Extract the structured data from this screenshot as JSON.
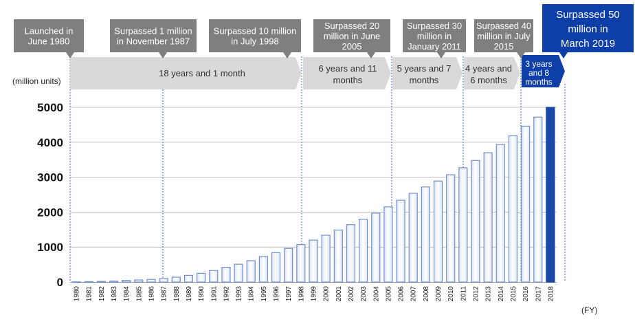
{
  "chart_data": {
    "type": "bar",
    "ylabel": "(million units)",
    "xlabel": "(FY)",
    "ylim": [
      0,
      5000
    ],
    "yticks": [
      0,
      1000,
      2000,
      3000,
      4000,
      5000
    ],
    "grid": true,
    "categories": [
      "1980",
      "1981",
      "1982",
      "1983",
      "1984",
      "1985",
      "1986",
      "1987",
      "1988",
      "1989",
      "1990",
      "1991",
      "1992",
      "1993",
      "1994",
      "1995",
      "1996",
      "1997",
      "1998",
      "1999",
      "2000",
      "2001",
      "2002",
      "2003",
      "2004",
      "2005",
      "2006",
      "2007",
      "2008",
      "2009",
      "2010",
      "2011",
      "2012",
      "2013",
      "2014",
      "2015",
      "2016",
      "2017",
      "2018"
    ],
    "values": [
      5,
      12,
      20,
      30,
      45,
      60,
      75,
      100,
      140,
      190,
      250,
      330,
      420,
      510,
      610,
      730,
      840,
      960,
      1070,
      1200,
      1340,
      1490,
      1640,
      1800,
      1970,
      2150,
      2340,
      2540,
      2720,
      2890,
      3070,
      3270,
      3480,
      3700,
      3930,
      4190,
      4460,
      4720,
      5000
    ],
    "highlight_last": true,
    "milestones": [
      {
        "label": "Launched in June 1980",
        "year": "1980"
      },
      {
        "label": "Surpassed 1 million in November 1987",
        "year": "1987"
      },
      {
        "label": "Surpassed 10 million in July 1998",
        "year": "1998"
      },
      {
        "label": "Surpassed 20 million in June 2005",
        "year": "2005"
      },
      {
        "label": "Surpassed 30 million in January 2011",
        "year": "2011"
      },
      {
        "label": "Surpassed 40 million in July 2015",
        "year": "2015"
      },
      {
        "label": "Surpassed 50 million in March 2019",
        "year": "2018"
      }
    ],
    "intervals": [
      {
        "label": "18 years and 1 month"
      },
      {
        "label": "6 years and 11 months"
      },
      {
        "label": "5 years and 7 months"
      },
      {
        "label": "4 years and 6 months"
      },
      {
        "label": "3 years and 8 months"
      }
    ]
  },
  "colors": {
    "callout_gray": "#7f7f7f",
    "callout_blue": "#0e3ea8",
    "arrow_gray": "#d9d9d9",
    "bar_fill": "#eef2f9",
    "bar_edge": "#6e8fd0",
    "bar_highlight": "#1a47a8",
    "guide_line": "#2a56b8",
    "grid": "#bfbfbf"
  }
}
